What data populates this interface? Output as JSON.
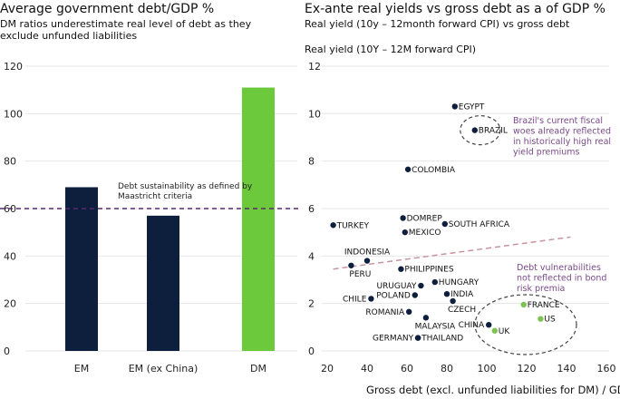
{
  "chart_data": [
    {
      "type": "bar",
      "title": "Average government debt/GDP %",
      "subtitle": "DM ratios underestimate real level of debt as they exclude unfunded liabilities",
      "categories": [
        "EM",
        "EM (ex China)",
        "DM"
      ],
      "values": [
        69,
        57,
        111
      ],
      "bar_colors": [
        "#0d1f3c",
        "#0d1f3c",
        "#6cc93c"
      ],
      "ylim": [
        0,
        120
      ],
      "yticks": [
        0,
        20,
        40,
        60,
        80,
        100,
        120
      ],
      "reference_line": {
        "value": 60,
        "label": "Debt sustainability as defined by Maastricht criteria",
        "color": "#5a2a6a"
      },
      "grid": true
    },
    {
      "type": "scatter",
      "title": "Ex-ante real yields vs gross debt as a of GDP %",
      "subtitle": "Real yield (10y – 12month forward CPI) vs gross debt",
      "ylabel": "Real yield (10Y – 12M forward CPI)",
      "xlabel": "Gross debt (excl. unfunded liabilities for DM) / GDP %",
      "xlim": [
        20,
        160
      ],
      "ylim": [
        0,
        12
      ],
      "xticks": [
        20,
        40,
        60,
        80,
        100,
        120,
        140,
        160
      ],
      "yticks": [
        0,
        2,
        4,
        6,
        8,
        10,
        12
      ],
      "grid": true,
      "em_color": "#0d1f3c",
      "dm_color": "#7dc352",
      "points": [
        {
          "name": "EGYPT",
          "x": 84,
          "y": 10.3,
          "group": "EM",
          "label": "right"
        },
        {
          "name": "BRAZIL",
          "x": 94,
          "y": 9.3,
          "group": "EM",
          "label": "right"
        },
        {
          "name": "COLOMBIA",
          "x": 60.5,
          "y": 7.65,
          "group": "EM",
          "label": "right"
        },
        {
          "name": "TURKEY",
          "x": 23,
          "y": 5.3,
          "group": "EM",
          "label": "right"
        },
        {
          "name": "DOMREP",
          "x": 58,
          "y": 5.6,
          "group": "EM",
          "label": "right"
        },
        {
          "name": "SOUTH AFRICA",
          "x": 79,
          "y": 5.35,
          "group": "EM",
          "label": "right"
        },
        {
          "name": "MEXICO",
          "x": 59,
          "y": 5.0,
          "group": "EM",
          "label": "right"
        },
        {
          "name": "INDONESIA",
          "x": 40,
          "y": 3.8,
          "group": "EM",
          "label": "above"
        },
        {
          "name": "PERU",
          "x": 32,
          "y": 3.6,
          "group": "EM",
          "label": "below"
        },
        {
          "name": "PHILIPPINES",
          "x": 57,
          "y": 3.45,
          "group": "EM",
          "label": "right"
        },
        {
          "name": "HUNGARY",
          "x": 74,
          "y": 2.9,
          "group": "EM",
          "label": "right"
        },
        {
          "name": "URUGUAY",
          "x": 67,
          "y": 2.75,
          "group": "EM",
          "label": "left"
        },
        {
          "name": "INDIA",
          "x": 80,
          "y": 2.4,
          "group": "EM",
          "label": "right"
        },
        {
          "name": "POLAND",
          "x": 64,
          "y": 2.35,
          "group": "EM",
          "label": "left"
        },
        {
          "name": "CHILE",
          "x": 42,
          "y": 2.2,
          "group": "EM",
          "label": "left"
        },
        {
          "name": "CZECH",
          "x": 83,
          "y": 2.1,
          "group": "EM",
          "label": "below"
        },
        {
          "name": "ROMANIA",
          "x": 61,
          "y": 1.65,
          "group": "EM",
          "label": "left"
        },
        {
          "name": "MALAYSIA",
          "x": 69.5,
          "y": 1.4,
          "group": "EM",
          "label": "below"
        },
        {
          "name": "CHINA",
          "x": 101,
          "y": 1.1,
          "group": "EM",
          "label": "left"
        },
        {
          "name": "GERMANY",
          "x": 65.5,
          "y": 0.55,
          "group": "DM",
          "label": "left"
        },
        {
          "name": "THAILAND",
          "x": 65.5,
          "y": 0.55,
          "group": "EM",
          "label": "right"
        },
        {
          "name": "UK",
          "x": 104,
          "y": 0.85,
          "group": "DM",
          "label": "right"
        },
        {
          "name": "FRANCE",
          "x": 118.5,
          "y": 1.95,
          "group": "DM",
          "label": "right"
        },
        {
          "name": "US",
          "x": 127,
          "y": 1.35,
          "group": "DM",
          "label": "right"
        }
      ],
      "trendline": {
        "from": [
          23,
          3.45
        ],
        "to": [
          142,
          4.8
        ],
        "color": "#c9939f"
      },
      "annotations": [
        {
          "text": "Brazil's current fiscal woes already reflected in historically high real yield premiums",
          "lines": [
            "Brazil's current fiscal",
            "woes already reflected",
            "in historically high real",
            "yield premiums"
          ],
          "color": "#7b4a8a"
        },
        {
          "text": "Debt vulnerabilities not reflected in bond risk premia",
          "lines": [
            "Debt vulnerabilities",
            "not reflected in bond",
            "risk premia"
          ],
          "color": "#7b4a8a"
        }
      ]
    }
  ]
}
